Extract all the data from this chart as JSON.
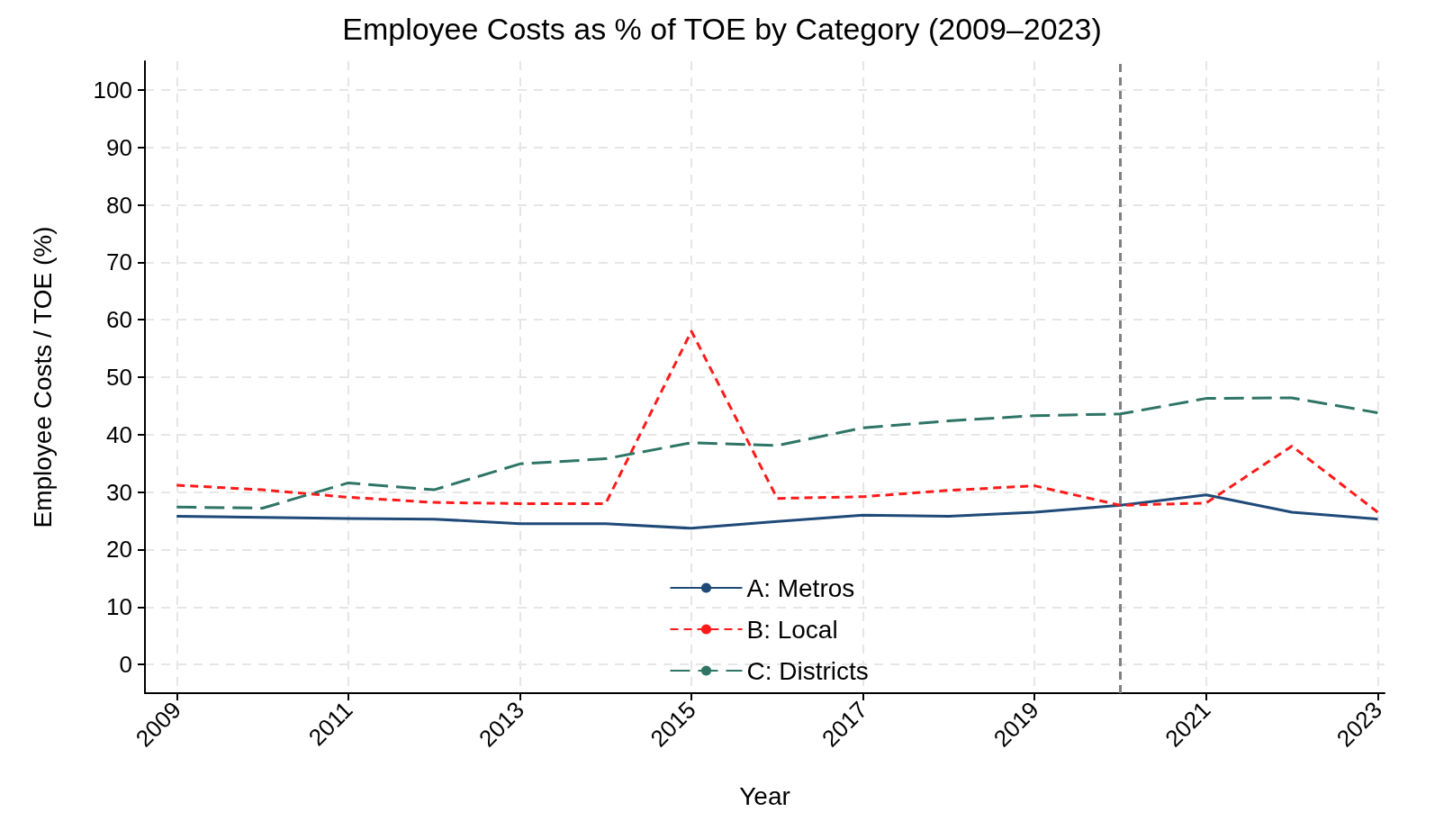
{
  "chart_data": {
    "type": "line",
    "title": "Employee Costs as % of TOE by Category (2009–2023)",
    "xlabel": "Year",
    "ylabel": "Employee Costs / TOE (%)",
    "x": [
      2009,
      2010,
      2011,
      2012,
      2013,
      2014,
      2015,
      2016,
      2017,
      2018,
      2019,
      2020,
      2021,
      2022,
      2023
    ],
    "series": [
      {
        "name": "A: Metros",
        "color": "#1f4a78",
        "line_style": "solid",
        "values": [
          25.8,
          25.6,
          25.4,
          25.3,
          24.5,
          24.5,
          23.7,
          24.9,
          26.0,
          25.8,
          26.5,
          27.7,
          29.5,
          26.5,
          25.3
        ]
      },
      {
        "name": "B: Local",
        "color": "#ff1a1a",
        "line_style": "dashed",
        "values": [
          31.2,
          30.4,
          29.1,
          28.2,
          28.0,
          28.0,
          58.0,
          28.9,
          29.2,
          30.3,
          31.1,
          27.7,
          28.1,
          38.0,
          26.5
        ]
      },
      {
        "name": "C: Districts",
        "color": "#2e7566",
        "line_style": "longdash",
        "values": [
          27.4,
          27.2,
          31.6,
          30.4,
          34.9,
          35.8,
          38.6,
          38.1,
          41.2,
          42.4,
          43.3,
          43.6,
          46.3,
          46.4,
          43.8
        ]
      }
    ],
    "xlim": [
      2008.63,
      2023.08
    ],
    "xticks": [
      2009,
      2011,
      2013,
      2015,
      2017,
      2019,
      2021,
      2023
    ],
    "ylim": [
      -5,
      105
    ],
    "yticks": [
      0,
      10,
      20,
      30,
      40,
      50,
      60,
      70,
      80,
      90,
      100
    ],
    "ref_lines": [
      {
        "axis": "x",
        "value": 2020,
        "color": "#808080",
        "line_style": "dashed"
      }
    ],
    "grid": true,
    "legend": "bottom",
    "marker": "none"
  }
}
